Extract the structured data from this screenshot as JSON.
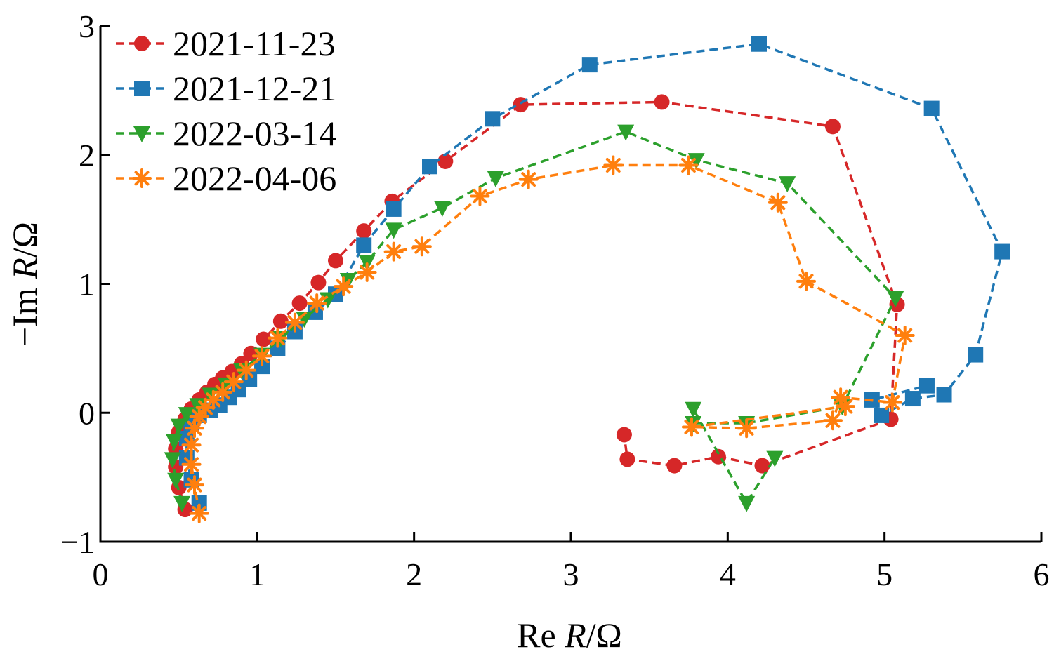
{
  "chart_data": {
    "type": "line",
    "xlabel_parts": [
      "Re ",
      "R",
      "/",
      "Ω"
    ],
    "ylabel_parts": [
      "−Im ",
      "R",
      "/",
      "Ω"
    ],
    "xlim": [
      0,
      6
    ],
    "ylim": [
      -1,
      3
    ],
    "xticks": [
      0,
      1,
      2,
      3,
      4,
      5,
      6
    ],
    "yticks": [
      -1,
      0,
      1,
      2,
      3
    ],
    "xtick_labels": [
      "0",
      "1",
      "2",
      "3",
      "4",
      "5",
      "6"
    ],
    "ytick_labels": [
      "−1",
      "0",
      "1",
      "2",
      "3"
    ],
    "grid": false,
    "legend_position": "top-left",
    "series": [
      {
        "name": "2021-11-23",
        "color": "#d62728",
        "marker": "circle",
        "x": [
          0.54,
          0.5,
          0.48,
          0.48,
          0.5,
          0.54,
          0.58,
          0.63,
          0.68,
          0.73,
          0.78,
          0.84,
          0.9,
          0.96,
          1.04,
          1.15,
          1.27,
          1.39,
          1.5,
          1.68,
          1.86,
          2.2,
          2.68,
          3.58,
          4.67,
          5.08,
          5.04,
          4.22,
          3.94,
          3.66,
          3.36,
          3.34
        ],
        "y": [
          -0.75,
          -0.58,
          -0.42,
          -0.28,
          -0.15,
          -0.05,
          0.03,
          0.1,
          0.16,
          0.22,
          0.27,
          0.32,
          0.38,
          0.46,
          0.57,
          0.71,
          0.85,
          1.01,
          1.18,
          1.41,
          1.64,
          1.95,
          2.39,
          2.41,
          2.22,
          0.84,
          -0.05,
          -0.41,
          -0.34,
          -0.41,
          -0.36,
          -0.17
        ]
      },
      {
        "name": "2021-12-21",
        "color": "#1f77b4",
        "marker": "square",
        "x": [
          0.63,
          0.58,
          0.55,
          0.55,
          0.58,
          0.63,
          0.7,
          0.76,
          0.82,
          0.88,
          0.95,
          1.03,
          1.13,
          1.24,
          1.37,
          1.5,
          1.68,
          1.87,
          2.1,
          2.5,
          3.12,
          4.2,
          5.3,
          5.75,
          5.58,
          5.38,
          5.18,
          4.98,
          4.92,
          5.27
        ],
        "y": [
          -0.7,
          -0.52,
          -0.35,
          -0.2,
          -0.08,
          -0.02,
          0.02,
          0.06,
          0.12,
          0.18,
          0.26,
          0.36,
          0.5,
          0.63,
          0.78,
          0.92,
          1.3,
          1.58,
          1.91,
          2.28,
          2.7,
          2.86,
          2.36,
          1.25,
          0.45,
          0.14,
          0.11,
          -0.02,
          0.1,
          0.21
        ]
      },
      {
        "name": "2022-03-14",
        "color": "#2ca02c",
        "marker": "triangle-down",
        "x": [
          0.52,
          0.48,
          0.46,
          0.47,
          0.5,
          0.55,
          0.62,
          0.7,
          0.8,
          0.9,
          1.03,
          1.15,
          1.3,
          1.45,
          1.58,
          1.7,
          1.87,
          2.18,
          2.52,
          3.35,
          3.8,
          4.38,
          5.07,
          4.73,
          4.12,
          3.78,
          3.78,
          4.12,
          4.3
        ],
        "y": [
          -0.7,
          -0.52,
          -0.36,
          -0.22,
          -0.1,
          -0.01,
          0.06,
          0.14,
          0.22,
          0.33,
          0.45,
          0.58,
          0.73,
          0.88,
          1.03,
          1.17,
          1.42,
          1.59,
          1.82,
          2.18,
          1.96,
          1.78,
          0.89,
          0.05,
          -0.08,
          -0.08,
          0.03,
          -0.7,
          -0.35
        ]
      },
      {
        "name": "2022-04-06",
        "color": "#ff7f0e",
        "marker": "asterisk",
        "x": [
          0.63,
          0.6,
          0.58,
          0.58,
          0.6,
          0.63,
          0.67,
          0.72,
          0.78,
          0.85,
          0.93,
          1.03,
          1.13,
          1.24,
          1.38,
          1.55,
          1.7,
          1.87,
          2.05,
          2.42,
          2.73,
          3.27,
          3.75,
          4.32,
          4.5,
          5.13,
          5.05,
          4.72,
          4.67,
          4.12,
          3.77,
          4.75
        ],
        "y": [
          -0.78,
          -0.56,
          -0.4,
          -0.25,
          -0.12,
          -0.03,
          0.04,
          0.1,
          0.16,
          0.24,
          0.33,
          0.44,
          0.58,
          0.7,
          0.85,
          0.98,
          1.09,
          1.25,
          1.29,
          1.68,
          1.81,
          1.92,
          1.92,
          1.63,
          1.02,
          0.6,
          0.08,
          0.12,
          -0.06,
          -0.12,
          -0.11,
          0.05
        ]
      }
    ]
  }
}
